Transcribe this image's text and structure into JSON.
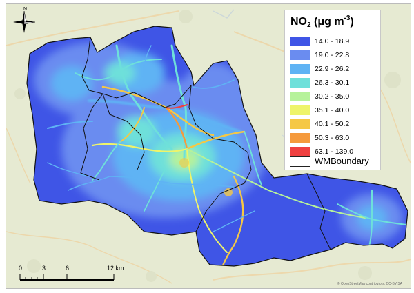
{
  "legend": {
    "title_main": "NO",
    "title_sub": "2",
    "title_unit": " (μg m",
    "title_sup": "-3",
    "title_close": ")",
    "classes": [
      {
        "label": "14.0 - 18.9",
        "color": "#3f55e6"
      },
      {
        "label": "19.0 - 22.8",
        "color": "#6a8cf0"
      },
      {
        "label": "22.9 - 26.2",
        "color": "#5fb3f4"
      },
      {
        "label": "26.3 - 30.1",
        "color": "#6ee0da"
      },
      {
        "label": "30.2 - 35.0",
        "color": "#b6f29a"
      },
      {
        "label": "35.1 - 40.0",
        "color": "#eef46a"
      },
      {
        "label": "40.1 - 50.2",
        "color": "#f5c845"
      },
      {
        "label": "50.3 - 63.0",
        "color": "#f59a3c"
      },
      {
        "label": "63.1 - 139.0",
        "color": "#ef4040"
      }
    ],
    "boundary_label": "WMBoundary"
  },
  "scalebar": {
    "ticks": [
      "0",
      "3",
      "6",
      "12 km"
    ]
  },
  "north_label": "N",
  "attribution": "© OpenStreetMap contributors, CC-BY-SA"
}
